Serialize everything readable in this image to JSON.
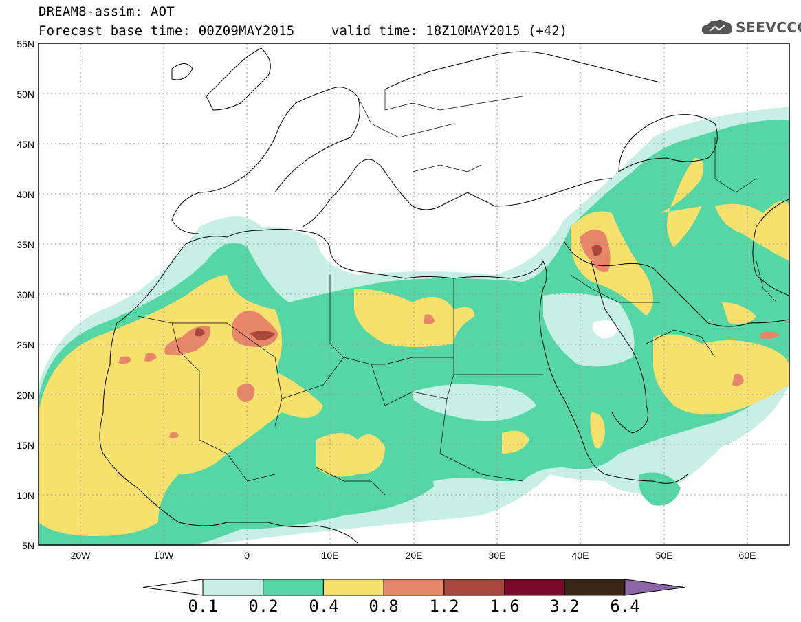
{
  "header": {
    "title": "DREAM8-assim: AOT",
    "base_time": "Forecast base time: 00Z09MAY2015",
    "valid_time": "valid time: 18Z10MAY2015 (+42)",
    "logo_text": "SEEVCCC"
  },
  "map": {
    "lat_ticks": [
      "55N",
      "50N",
      "45N",
      "40N",
      "35N",
      "30N",
      "25N",
      "20N",
      "15N",
      "10N",
      "5N"
    ],
    "lon_ticks": [
      "20W",
      "10W",
      "0",
      "10E",
      "20E",
      "30E",
      "40E",
      "50E",
      "60E"
    ],
    "lon_range": [
      -25,
      65
    ],
    "lat_range": [
      5,
      55
    ]
  },
  "colorbar": {
    "levels": [
      "0.1",
      "0.2",
      "0.4",
      "0.8",
      "1.2",
      "1.6",
      "3.2",
      "6.4"
    ],
    "colors": [
      "#c7efe6",
      "#55d6a4",
      "#f6e16e",
      "#e8866a",
      "#a8473c",
      "#7a0a28",
      "#3b2516",
      "#8a66a6"
    ]
  }
}
